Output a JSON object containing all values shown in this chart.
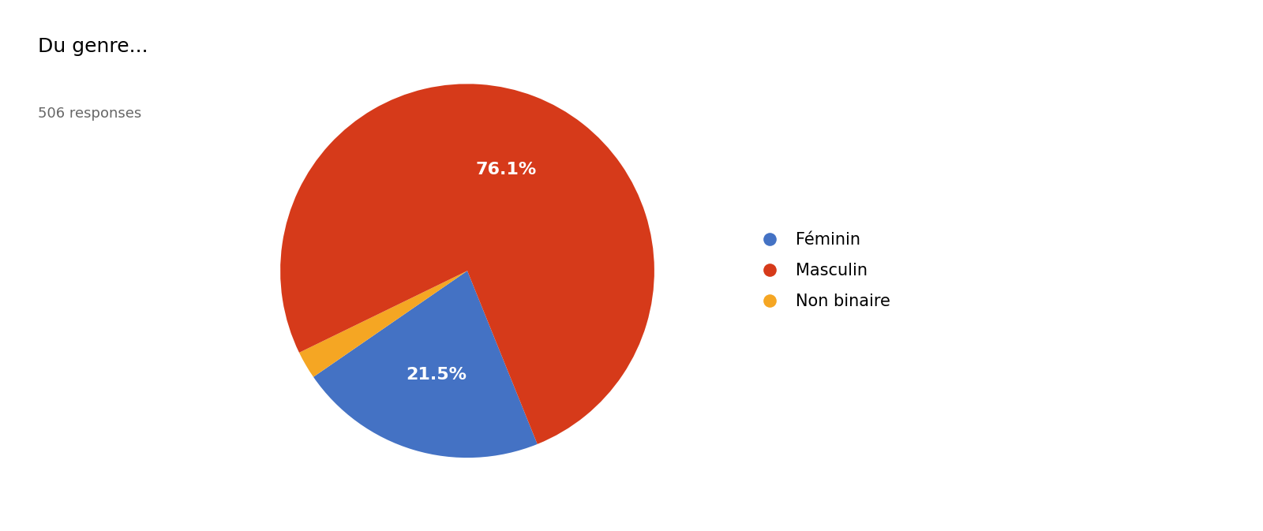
{
  "title": "Du genre...",
  "subtitle": "506 responses",
  "labels": [
    "Féminin",
    "Masculin",
    "Non binaire"
  ],
  "values": [
    21.5,
    76.1,
    2.4
  ],
  "colors": [
    "#4472c4",
    "#d63a1a",
    "#f5a623"
  ],
  "legend_labels": [
    "Féminin",
    "Masculin",
    "Non binaire"
  ],
  "title_fontsize": 18,
  "subtitle_fontsize": 13,
  "label_fontsize": 16,
  "legend_fontsize": 15,
  "background_color": "#ffffff",
  "text_color": "#000000",
  "pct_text_color": "#ffffff",
  "startangle": -68
}
